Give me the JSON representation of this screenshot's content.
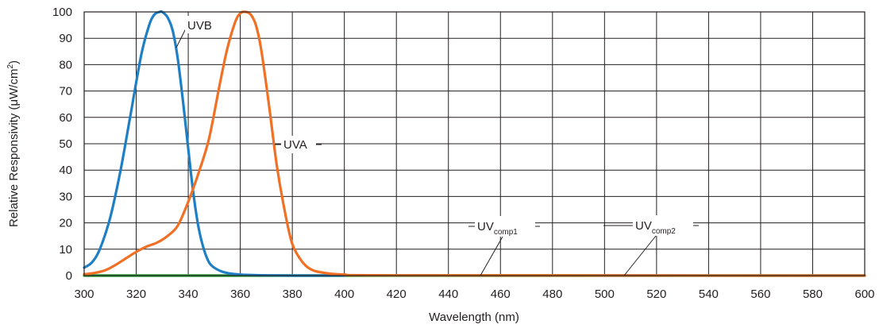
{
  "chart_data": {
    "type": "line",
    "xlabel": "Wavelength (nm)",
    "ylabel": "Relative Responsivity (μW/cm",
    "ylabel_sup": "2",
    "ylabel_close": ")",
    "xlim": [
      300,
      600
    ],
    "ylim": [
      0,
      100
    ],
    "x_ticks": [
      "300",
      "320",
      "340",
      "360",
      "380",
      "400",
      "420",
      "440",
      "460",
      "480",
      "500",
      "520",
      "540",
      "560",
      "580",
      "600"
    ],
    "y_ticks": [
      "0",
      "10",
      "20",
      "30",
      "40",
      "50",
      "60",
      "70",
      "80",
      "90",
      "100"
    ],
    "grid": true,
    "series": [
      {
        "name": "UVB",
        "color": "#1f7fc4",
        "x": [
          300,
          303,
          306,
          310,
          314,
          318,
          322,
          325,
          327,
          329,
          330,
          332,
          334,
          336,
          338,
          340,
          342,
          344,
          346,
          348,
          350,
          353,
          356,
          360,
          365,
          370,
          380,
          400
        ],
        "y": [
          3,
          5,
          10,
          22,
          40,
          62,
          84,
          95,
          99,
          100,
          100,
          98,
          93,
          82,
          66,
          48,
          31,
          18,
          10,
          5,
          3,
          1.5,
          0.8,
          0.4,
          0.2,
          0.1,
          0,
          0
        ]
      },
      {
        "name": "UVA",
        "color": "#f07025",
        "x": [
          300,
          304,
          308,
          312,
          316,
          320,
          324,
          328,
          332,
          336,
          340,
          344,
          348,
          352,
          355,
          358,
          360,
          362,
          364,
          366,
          368,
          371,
          374,
          377,
          380,
          384,
          388,
          394,
          400,
          420,
          600
        ],
        "y": [
          0.5,
          1,
          2,
          4,
          6.5,
          9,
          11,
          12.5,
          15,
          19,
          28,
          39,
          52,
          72,
          86,
          96,
          99.5,
          100,
          99,
          95,
          86,
          65,
          42,
          25,
          12,
          5,
          2,
          0.8,
          0.4,
          0.1,
          0
        ]
      },
      {
        "name": "UVcomp1",
        "color": "#2ca03c",
        "x": [
          300,
          600
        ],
        "y": [
          0,
          0
        ]
      },
      {
        "name": "UVcomp2",
        "color": "#2ca03c",
        "x": [
          300,
          600
        ],
        "y": [
          0,
          0
        ]
      }
    ],
    "annotations": [
      {
        "text": "UVB",
        "sub": ""
      },
      {
        "text": "UVA",
        "sub": ""
      },
      {
        "text": "UV",
        "sub": "comp1"
      },
      {
        "text": "UV",
        "sub": "comp2"
      }
    ]
  }
}
